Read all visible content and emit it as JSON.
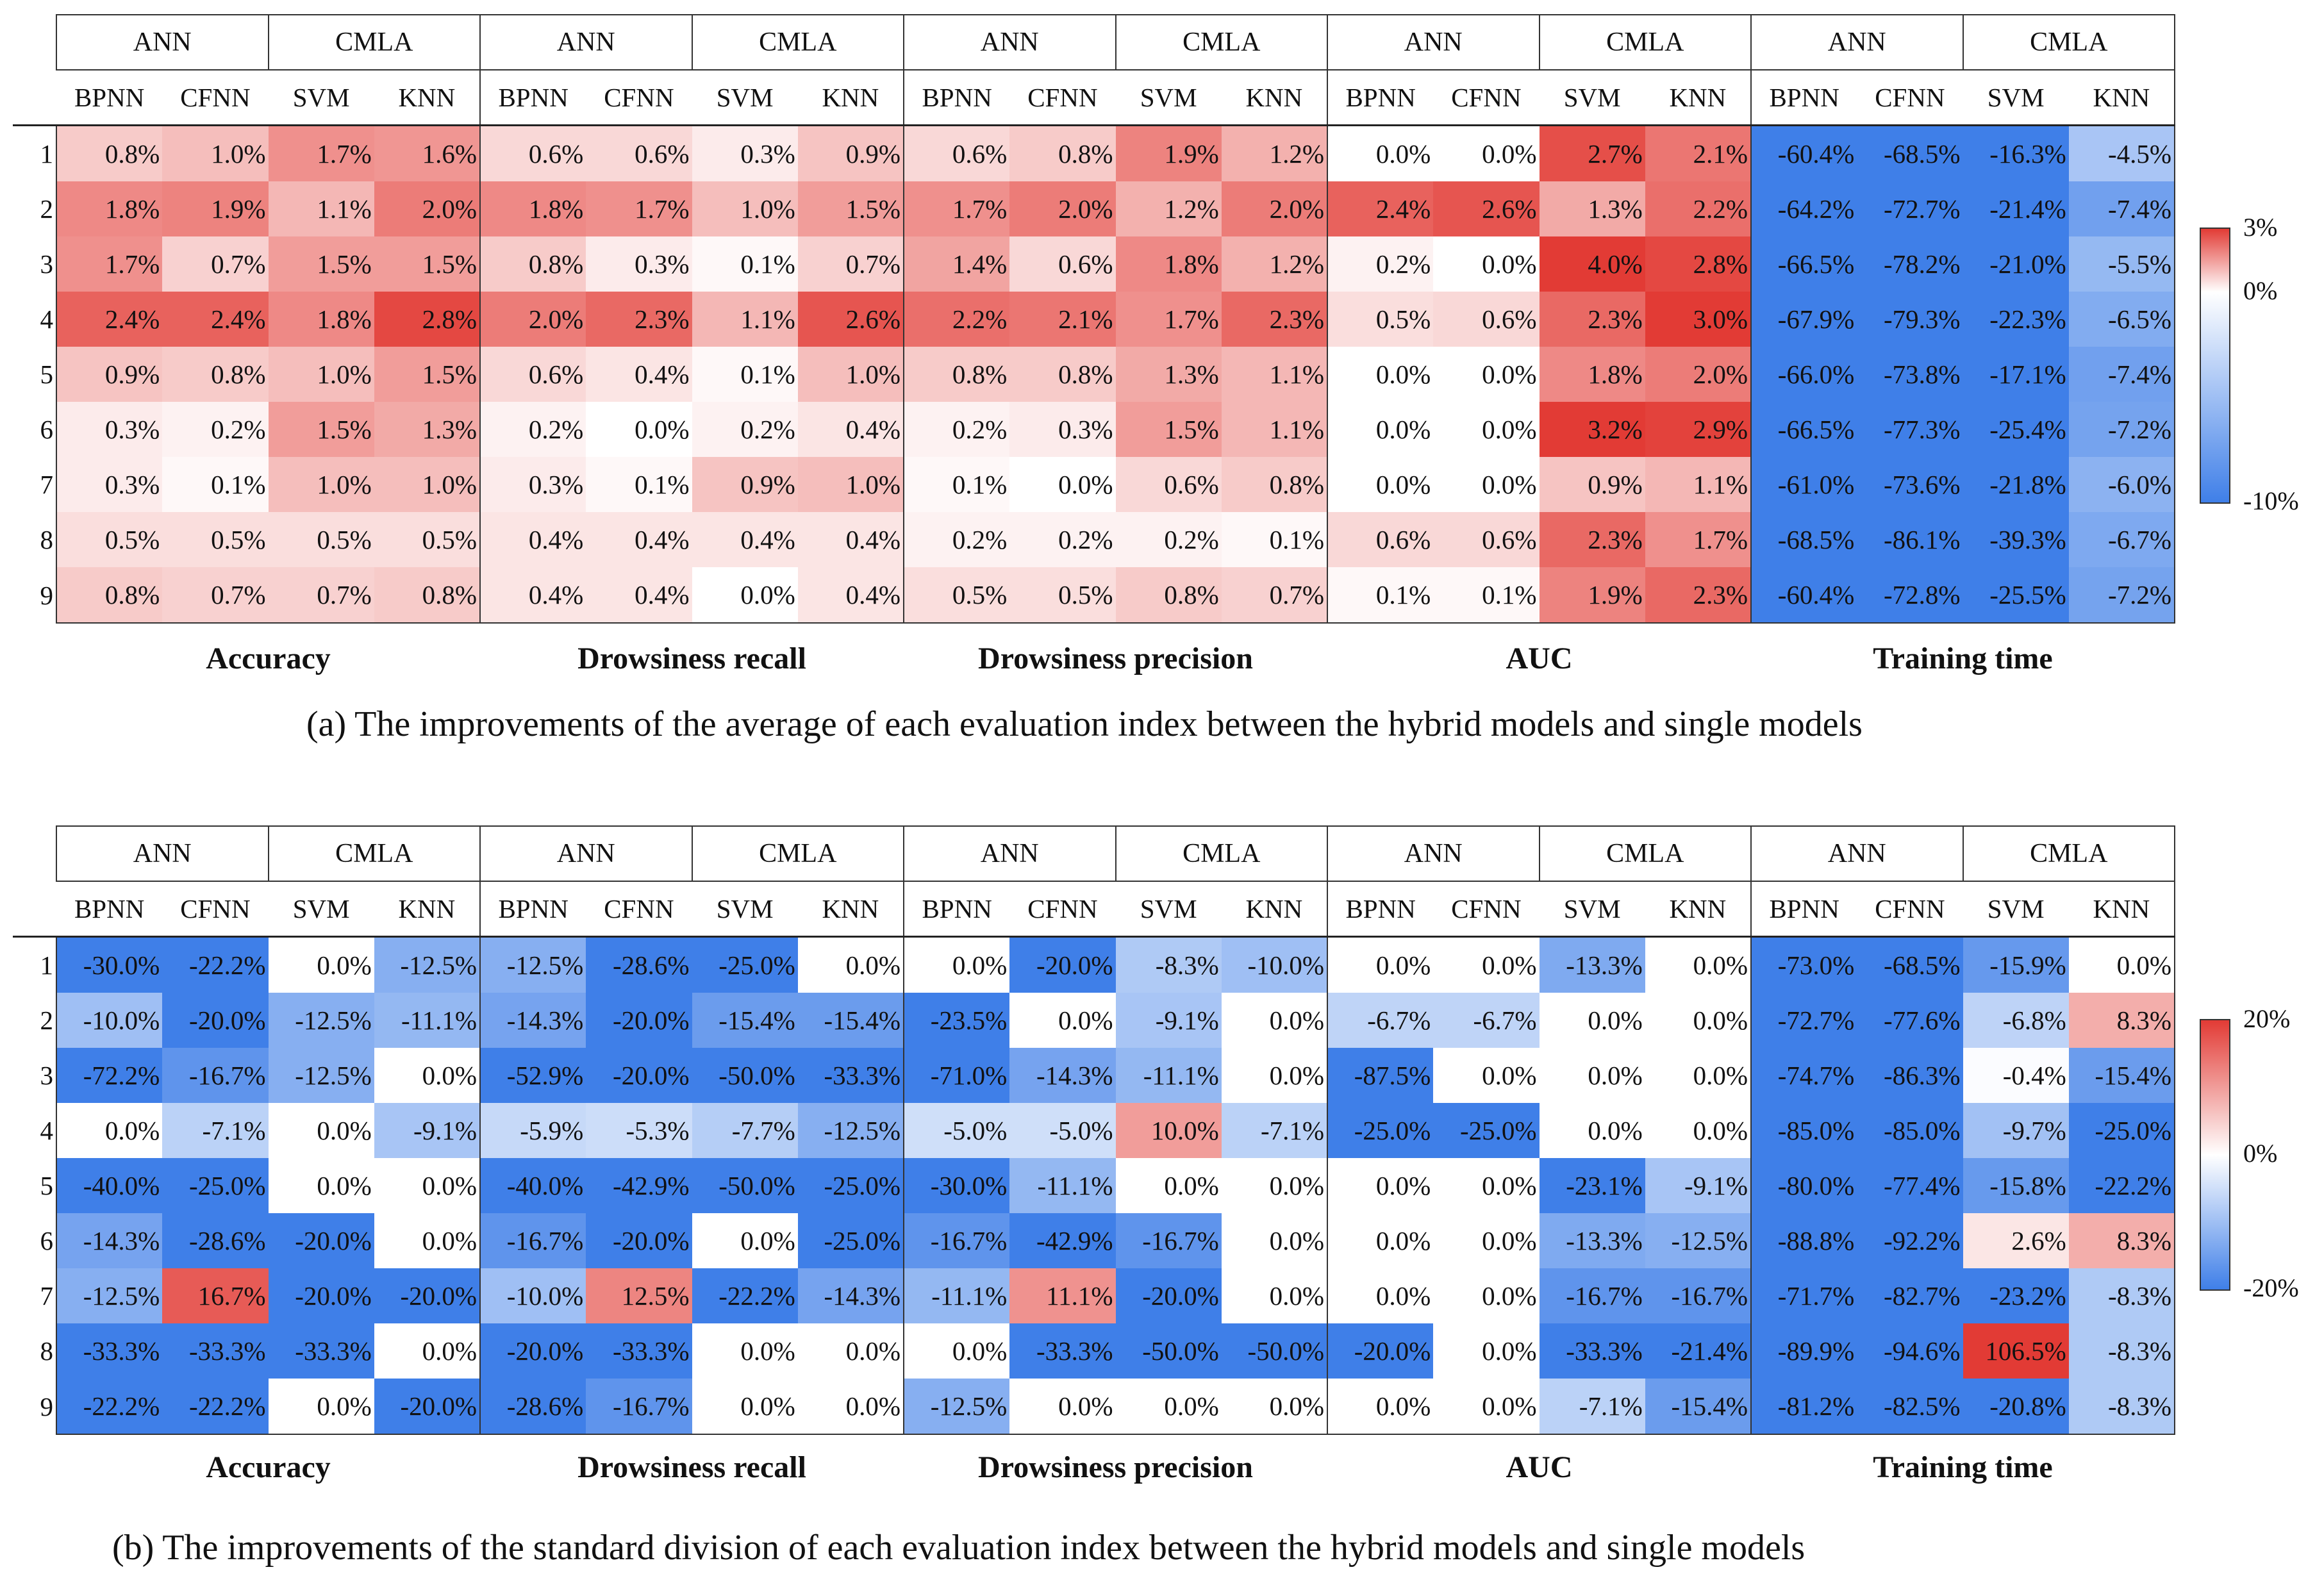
{
  "chart_data": [
    {
      "type": "heatmap",
      "panel": "a",
      "caption": "(a) The improvements of the average of each evaluation index between the hybrid models and single models",
      "group_labels": [
        "ANN",
        "CMLA"
      ],
      "model_labels": [
        "BPNN",
        "CFNN",
        "SVM",
        "KNN"
      ],
      "metrics": [
        "Accuracy",
        "Drowsiness recall",
        "Drowsiness precision",
        "AUC",
        "Training time"
      ],
      "rows": [
        "1",
        "2",
        "3",
        "4",
        "5",
        "6",
        "7",
        "8",
        "9"
      ],
      "colorbar": {
        "max": 3,
        "min": -10,
        "labels": [
          "3%",
          "0%",
          "-10%"
        ],
        "colors": {
          "positive": "#e23b35",
          "zero": "#ffffff",
          "negative": "#3f7fe8"
        }
      },
      "values": [
        [
          "0.8%",
          "1.0%",
          "1.7%",
          "1.6%",
          "0.6%",
          "0.6%",
          "0.3%",
          "0.9%",
          "0.6%",
          "0.8%",
          "1.9%",
          "1.2%",
          "0.0%",
          "0.0%",
          "2.7%",
          "2.1%",
          "-60.4%",
          "-68.5%",
          "-16.3%",
          "-4.5%"
        ],
        [
          "1.8%",
          "1.9%",
          "1.1%",
          "2.0%",
          "1.8%",
          "1.7%",
          "1.0%",
          "1.5%",
          "1.7%",
          "2.0%",
          "1.2%",
          "2.0%",
          "2.4%",
          "2.6%",
          "1.3%",
          "2.2%",
          "-64.2%",
          "-72.7%",
          "-21.4%",
          "-7.4%"
        ],
        [
          "1.7%",
          "0.7%",
          "1.5%",
          "1.5%",
          "0.8%",
          "0.3%",
          "0.1%",
          "0.7%",
          "1.4%",
          "0.6%",
          "1.8%",
          "1.2%",
          "0.2%",
          "0.0%",
          "4.0%",
          "2.8%",
          "-66.5%",
          "-78.2%",
          "-21.0%",
          "-5.5%"
        ],
        [
          "2.4%",
          "2.4%",
          "1.8%",
          "2.8%",
          "2.0%",
          "2.3%",
          "1.1%",
          "2.6%",
          "2.2%",
          "2.1%",
          "1.7%",
          "2.3%",
          "0.5%",
          "0.6%",
          "2.3%",
          "3.0%",
          "-67.9%",
          "-79.3%",
          "-22.3%",
          "-6.5%"
        ],
        [
          "0.9%",
          "0.8%",
          "1.0%",
          "1.5%",
          "0.6%",
          "0.4%",
          "0.1%",
          "1.0%",
          "0.8%",
          "0.8%",
          "1.3%",
          "1.1%",
          "0.0%",
          "0.0%",
          "1.8%",
          "2.0%",
          "-66.0%",
          "-73.8%",
          "-17.1%",
          "-7.4%"
        ],
        [
          "0.3%",
          "0.2%",
          "1.5%",
          "1.3%",
          "0.2%",
          "0.0%",
          "0.2%",
          "0.4%",
          "0.2%",
          "0.3%",
          "1.5%",
          "1.1%",
          "0.0%",
          "0.0%",
          "3.2%",
          "2.9%",
          "-66.5%",
          "-77.3%",
          "-25.4%",
          "-7.2%"
        ],
        [
          "0.3%",
          "0.1%",
          "1.0%",
          "1.0%",
          "0.3%",
          "0.1%",
          "0.9%",
          "1.0%",
          "0.1%",
          "0.0%",
          "0.6%",
          "0.8%",
          "0.0%",
          "0.0%",
          "0.9%",
          "1.1%",
          "-61.0%",
          "-73.6%",
          "-21.8%",
          "-6.0%"
        ],
        [
          "0.5%",
          "0.5%",
          "0.5%",
          "0.5%",
          "0.4%",
          "0.4%",
          "0.4%",
          "0.4%",
          "0.2%",
          "0.2%",
          "0.2%",
          "0.1%",
          "0.6%",
          "0.6%",
          "2.3%",
          "1.7%",
          "-68.5%",
          "-86.1%",
          "-39.3%",
          "-6.7%"
        ],
        [
          "0.8%",
          "0.7%",
          "0.7%",
          "0.8%",
          "0.4%",
          "0.4%",
          "0.0%",
          "0.4%",
          "0.5%",
          "0.5%",
          "0.8%",
          "0.7%",
          "0.1%",
          "0.1%",
          "1.9%",
          "2.3%",
          "-60.4%",
          "-72.8%",
          "-25.5%",
          "-7.2%"
        ]
      ]
    },
    {
      "type": "heatmap",
      "panel": "b",
      "caption": "(b) The improvements of the standard division of each evaluation index between the hybrid models and single models",
      "group_labels": [
        "ANN",
        "CMLA"
      ],
      "model_labels": [
        "BPNN",
        "CFNN",
        "SVM",
        "KNN"
      ],
      "metrics": [
        "Accuracy",
        "Drowsiness recall",
        "Drowsiness precision",
        "AUC",
        "Training  time"
      ],
      "rows": [
        "1",
        "2",
        "3",
        "4",
        "5",
        "6",
        "7",
        "8",
        "9"
      ],
      "colorbar": {
        "max": 20,
        "min": -20,
        "labels": [
          "20%",
          "0%",
          "-20%"
        ],
        "colors": {
          "positive": "#e23b35",
          "zero": "#ffffff",
          "negative": "#3f7fe8"
        }
      },
      "values": [
        [
          "-30.0%",
          "-22.2%",
          "0.0%",
          "-12.5%",
          "-12.5%",
          "-28.6%",
          "-25.0%",
          "0.0%",
          "0.0%",
          "-20.0%",
          "-8.3%",
          "-10.0%",
          "0.0%",
          "0.0%",
          "-13.3%",
          "0.0%",
          "-73.0%",
          "-68.5%",
          "-15.9%",
          "0.0%"
        ],
        [
          "-10.0%",
          "-20.0%",
          "-12.5%",
          "-11.1%",
          "-14.3%",
          "-20.0%",
          "-15.4%",
          "-15.4%",
          "-23.5%",
          "0.0%",
          "-9.1%",
          "0.0%",
          "-6.7%",
          "-6.7%",
          "0.0%",
          "0.0%",
          "-72.7%",
          "-77.6%",
          "-6.8%",
          "8.3%"
        ],
        [
          "-72.2%",
          "-16.7%",
          "-12.5%",
          "0.0%",
          "-52.9%",
          "-20.0%",
          "-50.0%",
          "-33.3%",
          "-71.0%",
          "-14.3%",
          "-11.1%",
          "0.0%",
          "-87.5%",
          "0.0%",
          "0.0%",
          "0.0%",
          "-74.7%",
          "-86.3%",
          "-0.4%",
          "-15.4%"
        ],
        [
          "0.0%",
          "-7.1%",
          "0.0%",
          "-9.1%",
          "-5.9%",
          "-5.3%",
          "-7.7%",
          "-12.5%",
          "-5.0%",
          "-5.0%",
          "10.0%",
          "-7.1%",
          "-25.0%",
          "-25.0%",
          "0.0%",
          "0.0%",
          "-85.0%",
          "-85.0%",
          "-9.7%",
          "-25.0%"
        ],
        [
          "-40.0%",
          "-25.0%",
          "0.0%",
          "0.0%",
          "-40.0%",
          "-42.9%",
          "-50.0%",
          "-25.0%",
          "-30.0%",
          "-11.1%",
          "0.0%",
          "0.0%",
          "0.0%",
          "0.0%",
          "-23.1%",
          "-9.1%",
          "-80.0%",
          "-77.4%",
          "-15.8%",
          "-22.2%"
        ],
        [
          "-14.3%",
          "-28.6%",
          "-20.0%",
          "0.0%",
          "-16.7%",
          "-20.0%",
          "0.0%",
          "-25.0%",
          "-16.7%",
          "-42.9%",
          "-16.7%",
          "0.0%",
          "0.0%",
          "0.0%",
          "-13.3%",
          "-12.5%",
          "-88.8%",
          "-92.2%",
          "2.6%",
          "8.3%"
        ],
        [
          "-12.5%",
          "16.7%",
          "-20.0%",
          "-20.0%",
          "-10.0%",
          "12.5%",
          "-22.2%",
          "-14.3%",
          "-11.1%",
          "11.1%",
          "-20.0%",
          "0.0%",
          "0.0%",
          "0.0%",
          "-16.7%",
          "-16.7%",
          "-71.7%",
          "-82.7%",
          "-23.2%",
          "-8.3%"
        ],
        [
          "-33.3%",
          "-33.3%",
          "-33.3%",
          "0.0%",
          "-20.0%",
          "-33.3%",
          "0.0%",
          "0.0%",
          "0.0%",
          "-33.3%",
          "-50.0%",
          "-50.0%",
          "-20.0%",
          "0.0%",
          "-33.3%",
          "-21.4%",
          "-89.9%",
          "-94.6%",
          "106.5%",
          "-8.3%"
        ],
        [
          "-22.2%",
          "-22.2%",
          "0.0%",
          "-20.0%",
          "-28.6%",
          "-16.7%",
          "0.0%",
          "0.0%",
          "-12.5%",
          "0.0%",
          "0.0%",
          "0.0%",
          "0.0%",
          "0.0%",
          "-7.1%",
          "-15.4%",
          "-81.2%",
          "-82.5%",
          "-20.8%",
          "-8.3%"
        ]
      ]
    }
  ]
}
